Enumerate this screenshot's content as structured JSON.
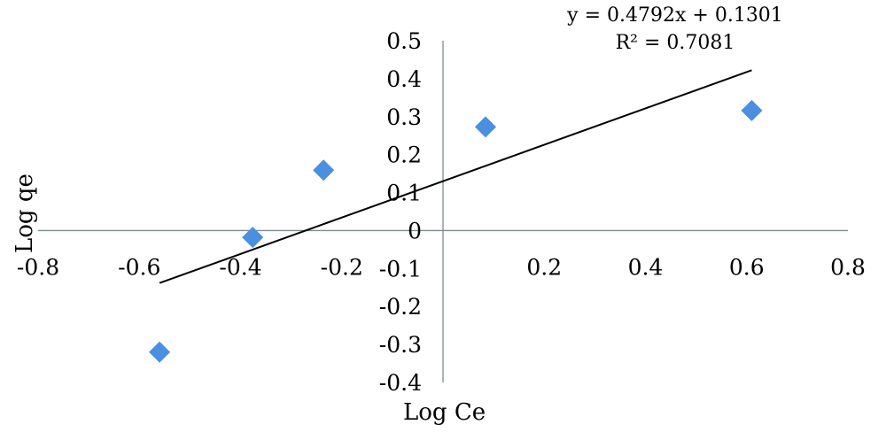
{
  "chart_data": {
    "type": "scatter",
    "xlabel": "Log Ce",
    "ylabel": "Log qe",
    "xlim": [
      -0.8,
      0.8
    ],
    "ylim": [
      -0.4,
      0.5
    ],
    "x_ticks": [
      "-0.8",
      "-0.6",
      "-0.4",
      "-0.2",
      "0",
      "0.2",
      "0.4",
      "0.6",
      "0.8"
    ],
    "x_tick_labels": [
      "-0.8",
      "-0.6",
      "-0.4",
      "-0.2",
      "0.2",
      "0.4",
      "0.6",
      "0.8"
    ],
    "y_tick_labels": [
      "0.5",
      "0.4",
      "0.3",
      "0.2",
      "0.1",
      "0",
      "-0.1",
      "-0.2",
      "-0.3",
      "-0.4"
    ],
    "series": [
      {
        "marker": "diamond",
        "color": "#4a8fe0",
        "points": [
          {
            "x": -0.56,
            "y": -0.32
          },
          {
            "x": -0.376,
            "y": -0.018
          },
          {
            "x": -0.236,
            "y": 0.159
          },
          {
            "x": 0.084,
            "y": 0.273
          },
          {
            "x": 0.61,
            "y": 0.316
          }
        ]
      }
    ],
    "trendline": {
      "slope": 0.4792,
      "intercept": 0.1301,
      "x_range": [
        -0.56,
        0.61
      ],
      "color": "#000000"
    },
    "annotations": {
      "equation": "y = 0.4792x + 0.1301",
      "r_squared": "R² = 0.7081"
    },
    "grid": false,
    "legend": "none"
  },
  "colors": {
    "axis": "#7f8c8d",
    "marker": "#4a8fe0",
    "trendline": "#000000"
  }
}
